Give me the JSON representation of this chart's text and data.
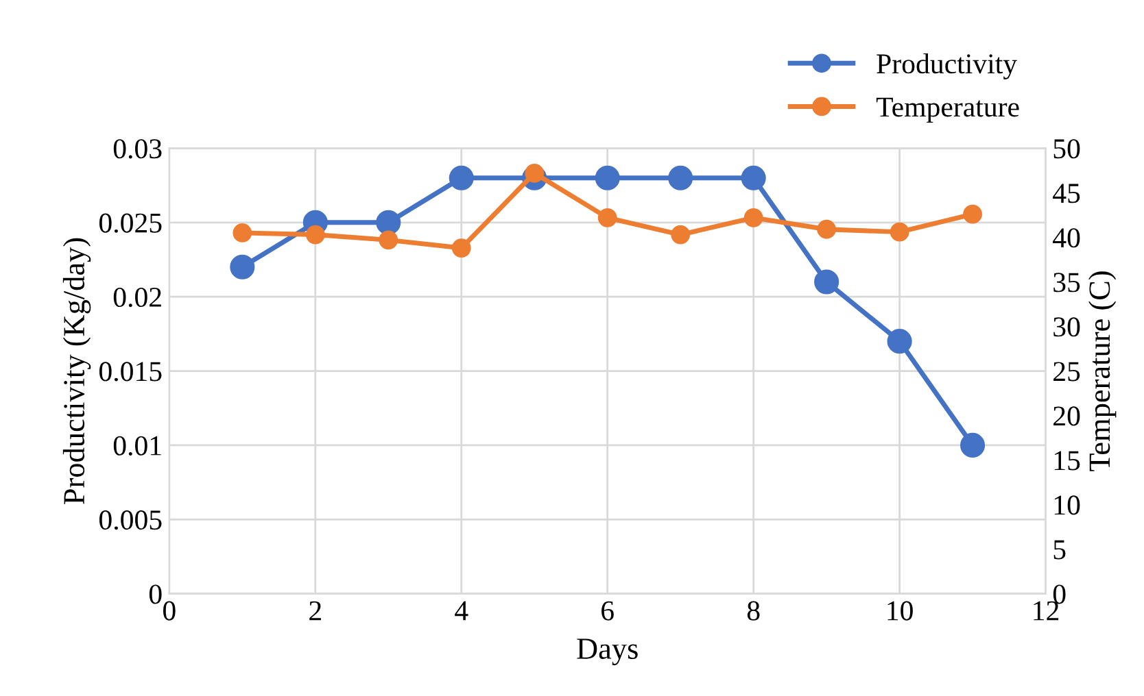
{
  "chart_data": {
    "type": "line",
    "xlabel": "Days",
    "ylabel": "Productivity (Kg/day)",
    "y2label": "Temperature (C)",
    "x": [
      1,
      2,
      3,
      4,
      5,
      6,
      7,
      8,
      9,
      10,
      11
    ],
    "series": [
      {
        "name": "Productivity",
        "color": "#4472c4",
        "values": [
          0.022,
          0.025,
          0.025,
          0.028,
          0.028,
          0.028,
          0.028,
          0.028,
          0.021,
          0.017,
          0.01
        ]
      },
      {
        "name": "Temperature",
        "color": "#ed7d31",
        "axis": "y2",
        "values": [
          40.5,
          40.3,
          39.7,
          38.8,
          47.2,
          42.2,
          40.3,
          42.2,
          40.9,
          40.6,
          42.6
        ]
      }
    ],
    "xlim": [
      0,
      12
    ],
    "xticks": [
      0,
      2,
      4,
      6,
      8,
      10,
      12
    ],
    "ylim": [
      0,
      0.03
    ],
    "yticks": [
      {
        "value": 0,
        "label": "0"
      },
      {
        "value": 0.005,
        "label": "0.005"
      },
      {
        "value": 0.01,
        "label": "0.01"
      },
      {
        "value": 0.015,
        "label": "0.015"
      },
      {
        "value": 0.02,
        "label": "0.02"
      },
      {
        "value": 0.025,
        "label": "0.025"
      },
      {
        "value": 0.03,
        "label": "0.03"
      }
    ],
    "y2lim": [
      0,
      50
    ],
    "y2ticks": [
      0,
      5,
      10,
      15,
      20,
      25,
      30,
      35,
      40,
      45,
      50
    ],
    "grid": true,
    "legend": "top right",
    "marker": "circle",
    "line_style": "solid"
  }
}
